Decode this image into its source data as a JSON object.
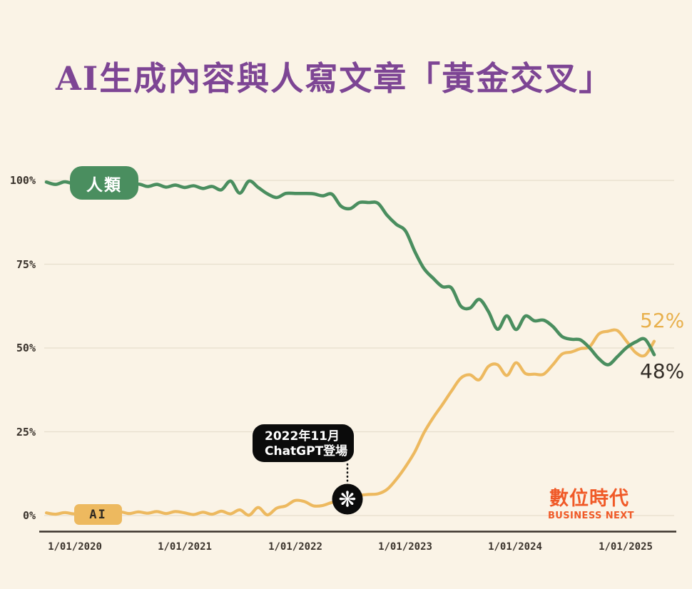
{
  "page": {
    "background": "#faf3e6"
  },
  "header": {
    "title": "AI生成內容與人寫文章「黃金交叉」",
    "title_color": "#7d4594"
  },
  "chart_data": {
    "type": "line",
    "title": "AI生成內容與人寫文章「黃金交叉」",
    "x_interval": "monthly",
    "x_start": "2019-10",
    "x_end": "2025-04",
    "x_tick_labels": [
      "1/01/2020",
      "1/01/2021",
      "1/01/2022",
      "1/01/2023",
      "1/01/2024",
      "1/01/2025"
    ],
    "y_tick_labels": [
      "100%",
      "75%",
      "50%",
      "25%",
      "0%"
    ],
    "ylim": [
      0,
      100
    ],
    "grid": true,
    "legend_position": "on-line-badges",
    "series": [
      {
        "name": "人類",
        "color": "#4a8e5f",
        "end_value_label": "48%",
        "values": [
          99.5,
          98.8,
          99.6,
          99.0,
          99.5,
          98.6,
          99.3,
          98.5,
          99.0,
          98.3,
          98.9,
          98.2,
          98.8,
          98.0,
          98.6,
          97.9,
          98.4,
          97.6,
          98.2,
          97.2,
          99.8,
          96.2,
          99.8,
          97.9,
          96.0,
          94.9,
          96.1,
          96.1,
          96.1,
          96.0,
          95.4,
          95.9,
          92.3,
          91.6,
          93.4,
          93.4,
          93.2,
          89.6,
          86.9,
          84.9,
          78.8,
          73.7,
          70.8,
          68.3,
          67.9,
          62.5,
          61.9,
          64.5,
          60.9,
          55.6,
          59.6,
          55.5,
          59.5,
          58.1,
          58.3,
          56.4,
          53.4,
          52.6,
          52.4,
          50.0,
          46.8,
          45.0,
          47.4,
          50.1,
          51.8,
          52.6,
          48.0
        ]
      },
      {
        "name": "AI",
        "color": "#edb95f",
        "end_value_label": "52%",
        "values": [
          0.8,
          0.4,
          0.9,
          0.5,
          1.0,
          0.5,
          1.0,
          0.6,
          1.1,
          0.6,
          1.1,
          0.7,
          1.2,
          0.6,
          1.2,
          0.8,
          0.3,
          1.0,
          0.4,
          1.3,
          0.5,
          1.7,
          0.1,
          2.4,
          0.2,
          2.2,
          2.9,
          4.5,
          4.2,
          2.9,
          3.0,
          3.9,
          4.3,
          5.0,
          6.0,
          6.3,
          6.5,
          7.8,
          10.8,
          14.6,
          19.0,
          24.7,
          29.2,
          33.1,
          37.2,
          41.0,
          42.0,
          40.5,
          44.5,
          45.0,
          41.8,
          45.6,
          42.4,
          42.2,
          42.2,
          45.0,
          48.2,
          48.8,
          49.8,
          50.4,
          54.2,
          55.0,
          55.2,
          52.0,
          48.6,
          47.8,
          52.0
        ]
      }
    ],
    "annotations": [
      {
        "line1": "2022年11月",
        "line2": "ChatGPT登場",
        "marker": "openai-logo",
        "marker_color": "#0b0b0b",
        "icon_glyph": "❋"
      }
    ],
    "end_labels": [
      {
        "series": "AI",
        "text": "52%",
        "color": "#e8b04c"
      },
      {
        "series": "人類",
        "text": "48%",
        "color": "#332d27"
      }
    ]
  },
  "branding": {
    "name_zh": "數位時代",
    "name_en": "BUSINESS NEXT",
    "color": "#f05a28"
  }
}
